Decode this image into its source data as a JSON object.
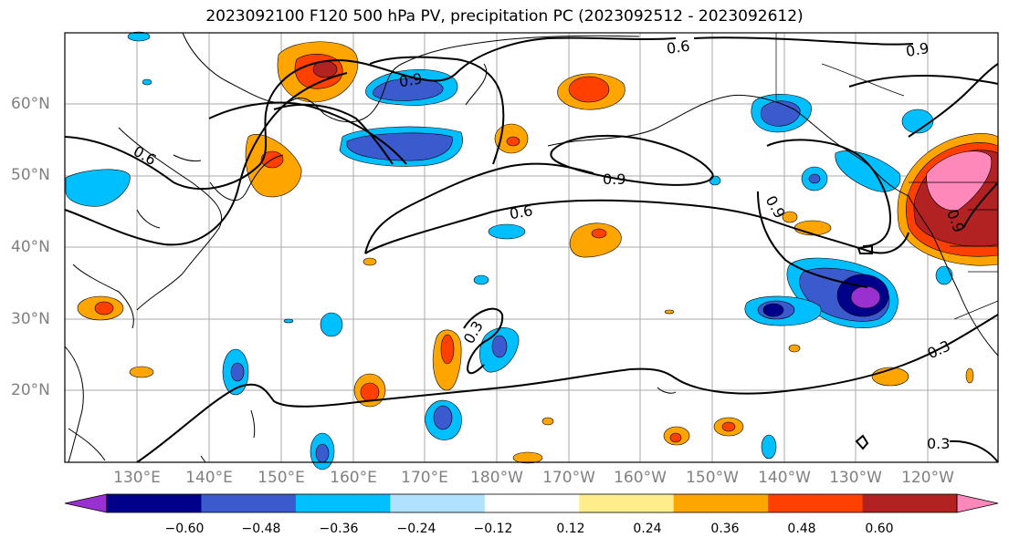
{
  "title": "2023092100 F120 500 hPa PV, precipitation PC (2023092512 - 2023092612)",
  "lat_labels": [
    "60°N",
    "50°N",
    "40°N",
    "30°N",
    "20°N"
  ],
  "lon_labels": [
    "130°E",
    "140°E",
    "150°E",
    "160°E",
    "170°E",
    "180°W",
    "170°W",
    "160°W",
    "150°W",
    "140°W",
    "130°W",
    "120°W"
  ],
  "contour_labels": [
    "0.6",
    "0.9",
    "0.9",
    "0.6",
    "0.9",
    "0.6",
    "0.9",
    "0.3",
    "0.3",
    "0.3",
    "0.9"
  ],
  "colorbar": {
    "ticks": [
      "−0.60",
      "−0.48",
      "−0.36",
      "−0.24",
      "−0.12",
      "0.12",
      "0.24",
      "0.36",
      "0.48",
      "0.60"
    ],
    "colors": [
      "#9b30d0",
      "#00008b",
      "#3a5acd",
      "#00bfff",
      "#b0e2ff",
      "#ffffff",
      "#ffec8b",
      "#ffa500",
      "#ff4000",
      "#b22222",
      "#ff88bb"
    ]
  }
}
